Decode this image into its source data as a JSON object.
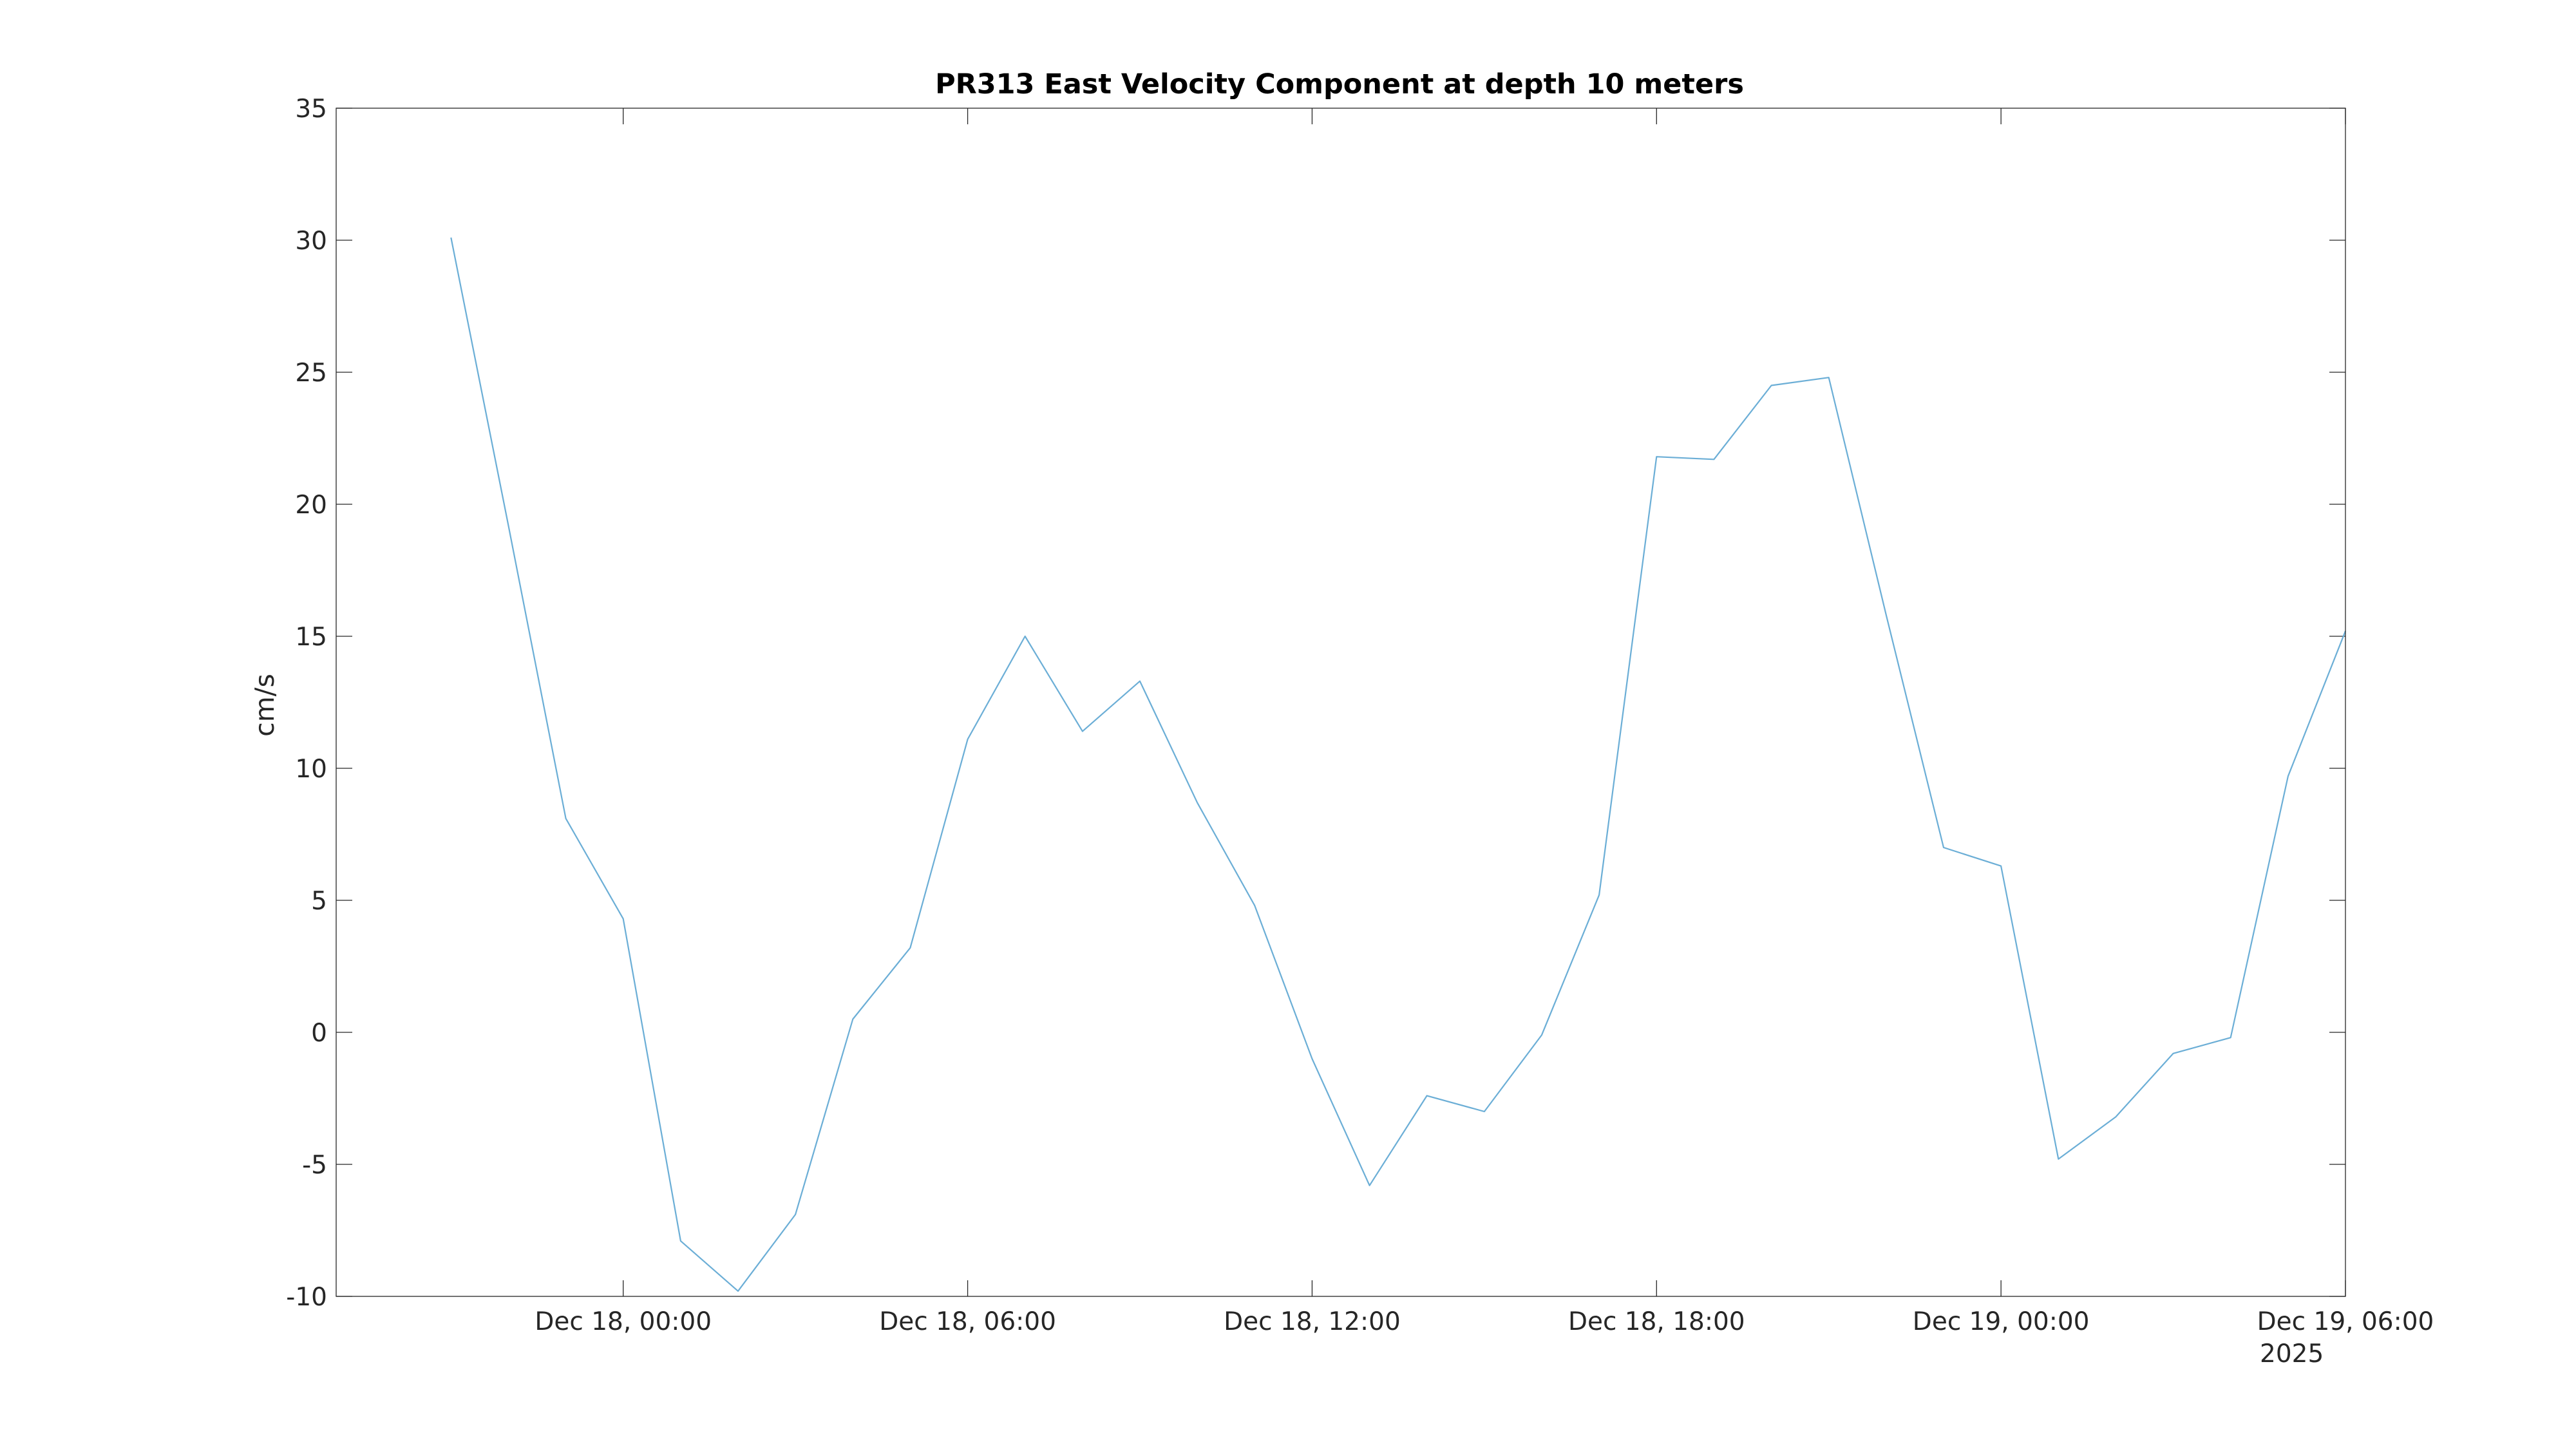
{
  "chart_data": {
    "type": "line",
    "title": "PR313 East Velocity Component at depth 10 meters",
    "xlabel": "",
    "ylabel": "cm/s",
    "ylim": [
      -10,
      35
    ],
    "xlim": [
      "Dec 17, 2025 19:00",
      "Dec 19, 2025 06:00"
    ],
    "yticks": [
      -10,
      -5,
      0,
      5,
      10,
      15,
      20,
      25,
      30,
      35
    ],
    "xticks": [
      {
        "t": "Dec 18, 2025 00:00",
        "label": "Dec 18, 00:00"
      },
      {
        "t": "Dec 18, 2025 06:00",
        "label": "Dec 18, 06:00"
      },
      {
        "t": "Dec 18, 2025 12:00",
        "label": "Dec 18, 12:00"
      },
      {
        "t": "Dec 18, 2025 18:00",
        "label": "Dec 18, 18:00"
      },
      {
        "t": "Dec 19, 2025 00:00",
        "label": "Dec 19, 00:00"
      },
      {
        "t": "Dec 19, 2025 06:00",
        "label": "Dec 19, 06:00"
      }
    ],
    "year_label": "2025",
    "grid": false,
    "color": "#6baed6",
    "series": [
      {
        "x": [
          "Dec 17, 2025 21:00",
          "Dec 17, 2025 22:00",
          "Dec 17, 2025 23:00",
          "Dec 18, 2025 00:00",
          "Dec 18, 2025 01:00",
          "Dec 18, 2025 02:00",
          "Dec 18, 2025 03:00",
          "Dec 18, 2025 04:00",
          "Dec 18, 2025 05:00",
          "Dec 18, 2025 06:00",
          "Dec 18, 2025 07:00",
          "Dec 18, 2025 08:00",
          "Dec 18, 2025 09:00",
          "Dec 18, 2025 10:00",
          "Dec 18, 2025 11:00",
          "Dec 18, 2025 12:00",
          "Dec 18, 2025 13:00",
          "Dec 18, 2025 14:00",
          "Dec 18, 2025 15:00",
          "Dec 18, 2025 16:00",
          "Dec 18, 2025 17:00",
          "Dec 18, 2025 18:00",
          "Dec 18, 2025 19:00",
          "Dec 18, 2025 20:00",
          "Dec 18, 2025 21:00",
          "Dec 18, 2025 22:00",
          "Dec 18, 2025 23:00",
          "Dec 19, 2025 00:00",
          "Dec 19, 2025 01:00",
          "Dec 19, 2025 02:00",
          "Dec 19, 2025 03:00",
          "Dec 19, 2025 04:00",
          "Dec 19, 2025 05:00",
          "Dec 19, 2025 06:00"
        ],
        "y": [
          30.1,
          19.2,
          8.1,
          4.3,
          -7.9,
          -9.8,
          -6.9,
          0.5,
          3.2,
          11.1,
          15.0,
          11.4,
          13.3,
          8.7,
          4.8,
          -1.0,
          -5.8,
          -2.4,
          -3.0,
          -0.1,
          5.2,
          21.8,
          21.7,
          24.5,
          24.8,
          15.8,
          7.0,
          6.3,
          -4.8,
          -3.2,
          -0.8,
          -0.2,
          9.7,
          15.2
        ]
      }
    ]
  }
}
